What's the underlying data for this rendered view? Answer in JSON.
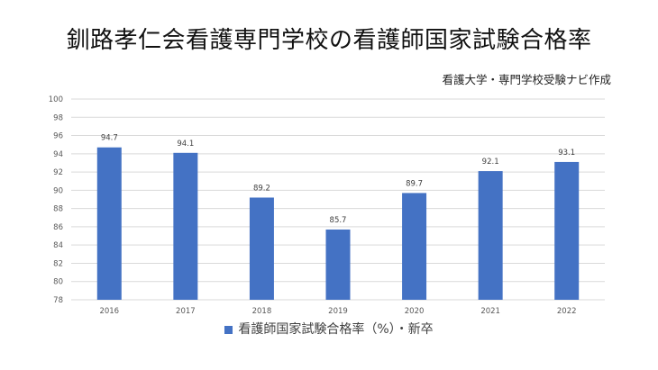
{
  "title": "釧路孝仁会看護専門学校の看護師国家試験合格率",
  "credit": "看護大学・専門学校受験ナビ作成",
  "colors": {
    "bar": "#4472c4",
    "grid": "#d9d9d9"
  },
  "chart_data": {
    "type": "bar",
    "categories": [
      "2016",
      "2017",
      "2018",
      "2019",
      "2020",
      "2021",
      "2022"
    ],
    "series": [
      {
        "name": "看護師国家試験合格率（%）・新卒",
        "values": [
          94.7,
          94.1,
          89.2,
          85.7,
          89.7,
          92.1,
          93.1
        ]
      }
    ],
    "data_labels": [
      "94.7",
      "94.1",
      "89.2",
      "85.7",
      "89.7",
      "92.1",
      "93.1"
    ],
    "ylim": [
      78,
      100
    ],
    "yticks": [
      78,
      80,
      82,
      84,
      86,
      88,
      90,
      92,
      94,
      96,
      98,
      100
    ],
    "ytick_labels": [
      "78",
      "80",
      "82",
      "84",
      "86",
      "88",
      "90",
      "92",
      "94",
      "96",
      "98",
      "100"
    ],
    "grid": true,
    "legend": "bottom"
  }
}
